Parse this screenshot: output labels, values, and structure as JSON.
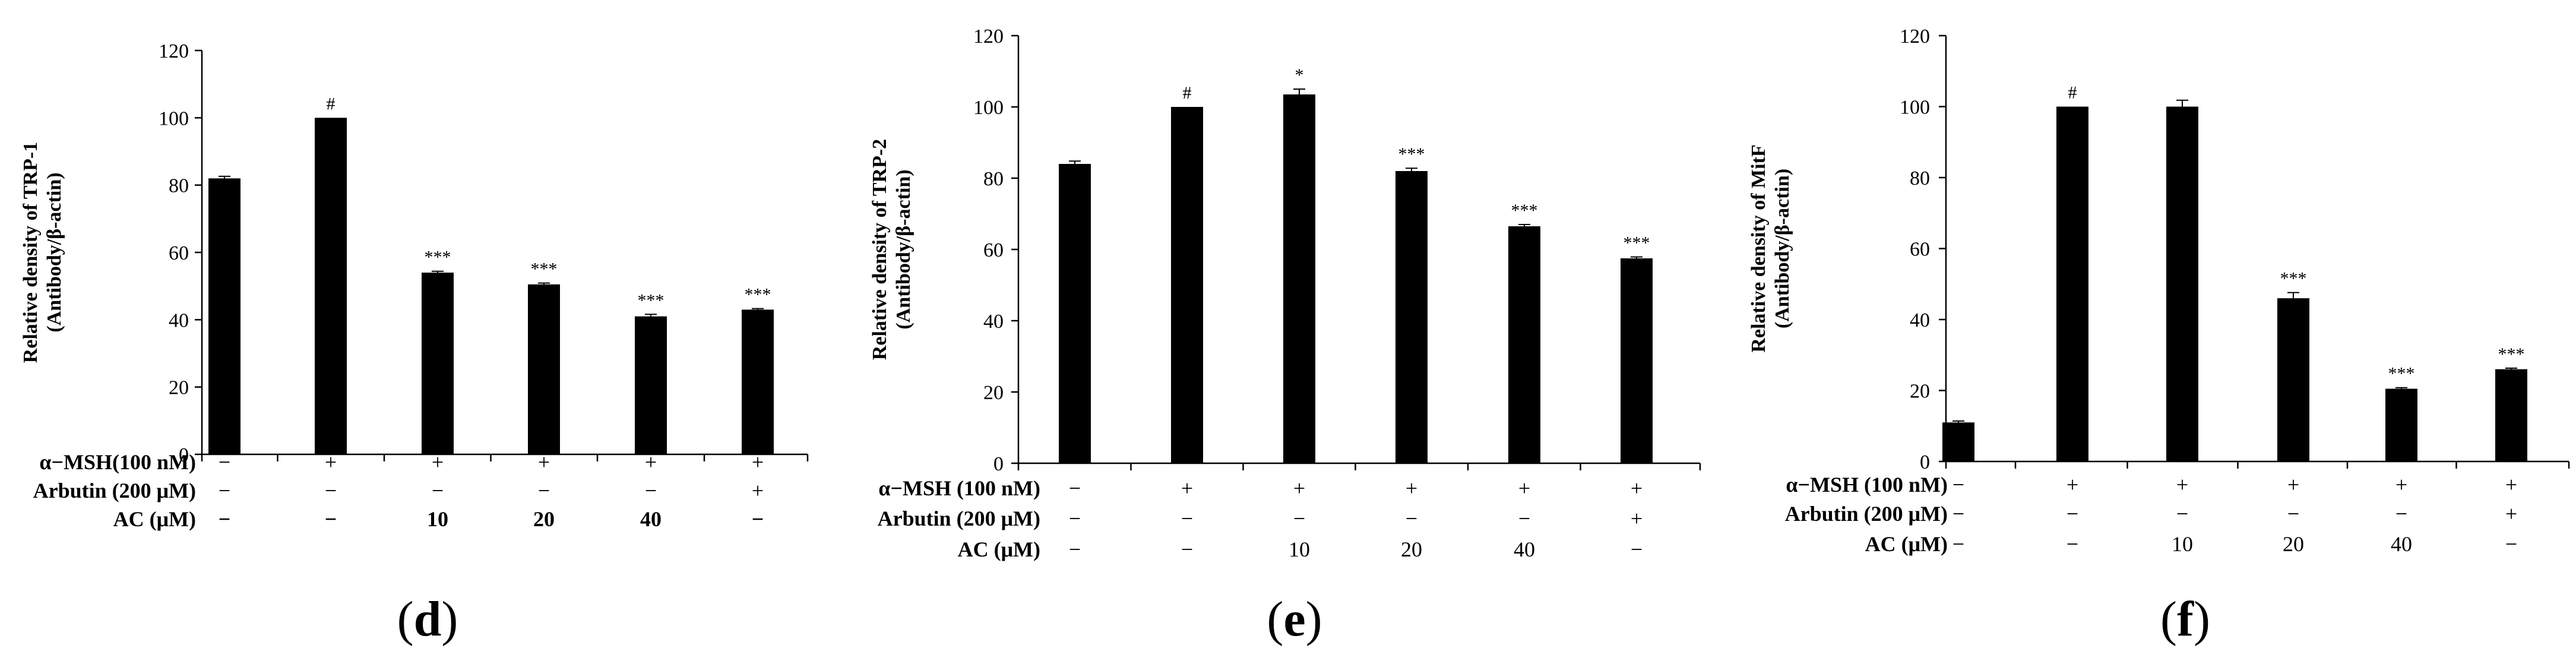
{
  "chart_data": [
    {
      "type": "bar",
      "ylabel": [
        "Relative density of TRP-1",
        "(Antibody/β-actin)"
      ],
      "ylim": [
        0,
        120
      ],
      "yticks": [
        0,
        20,
        40,
        60,
        80,
        100,
        120
      ],
      "values": [
        82,
        100,
        54,
        50.5,
        41,
        43
      ],
      "errors": [
        0.6,
        0,
        0.4,
        0.4,
        0.6,
        0.3
      ],
      "significance": [
        "",
        "#",
        "***",
        "***",
        "***",
        "***"
      ],
      "conditions": [
        {
          "label": "α−MSH(100 nM)",
          "values": [
            "−",
            "+",
            "+",
            "+",
            "+",
            "+"
          ],
          "bold": false
        },
        {
          "label": "Arbutin (200 μM)",
          "values": [
            "−",
            "−",
            "−",
            "−",
            "−",
            "+"
          ],
          "bold": false
        },
        {
          "label": "AC (μM)",
          "values": [
            "−",
            "−",
            "10",
            "20",
            "40",
            "−"
          ],
          "bold": true
        }
      ],
      "caption_open": "(",
      "caption_letter": "d",
      "caption_close": ")"
    },
    {
      "type": "bar",
      "ylabel": [
        "Relative density of TRP-2",
        "(Antibody/β-actin)"
      ],
      "ylim": [
        0,
        120
      ],
      "yticks": [
        0,
        20,
        40,
        60,
        80,
        100,
        120
      ],
      "values": [
        84,
        100,
        103.5,
        82,
        66.5,
        57.5
      ],
      "errors": [
        0.8,
        0,
        1.5,
        0.8,
        0.5,
        0.4
      ],
      "significance": [
        "",
        "#",
        "*",
        "***",
        "***",
        "***"
      ],
      "conditions": [
        {
          "label": "α−MSH (100 nM)",
          "values": [
            "−",
            "+",
            "+",
            "+",
            "+",
            "+"
          ],
          "bold": false
        },
        {
          "label": "Arbutin (200 μM)",
          "values": [
            "−",
            "−",
            "−",
            "−",
            "−",
            "+"
          ],
          "bold": false
        },
        {
          "label": "AC (μM)",
          "values": [
            "−",
            "−",
            "10",
            "20",
            "40",
            "−"
          ],
          "bold": false
        }
      ],
      "caption_open": "(",
      "caption_letter": "e",
      "caption_close": ")"
    },
    {
      "type": "bar",
      "ylabel": [
        "Relative density of MitF",
        "(Antibody/β-actin)"
      ],
      "ylim": [
        0,
        120
      ],
      "yticks": [
        0,
        20,
        40,
        60,
        80,
        100,
        120
      ],
      "values": [
        11,
        100,
        100,
        46,
        20.5,
        26
      ],
      "errors": [
        0.4,
        0,
        1.8,
        1.6,
        0.3,
        0.3
      ],
      "significance": [
        "",
        "#",
        "",
        "***",
        "***",
        "***"
      ],
      "conditions": [
        {
          "label": "α−MSH (100 nM)",
          "values": [
            "−",
            "+",
            "+",
            "+",
            "+",
            "+"
          ],
          "bold": false
        },
        {
          "label": "Arbutin (200 μM)",
          "values": [
            "−",
            "−",
            "−",
            "−",
            "−",
            "+"
          ],
          "bold": false
        },
        {
          "label": "AC (μM)",
          "values": [
            "−",
            "−",
            "10",
            "20",
            "40",
            "−"
          ],
          "bold": false
        }
      ],
      "caption_open": "(",
      "caption_letter": "f",
      "caption_close": ")"
    }
  ]
}
